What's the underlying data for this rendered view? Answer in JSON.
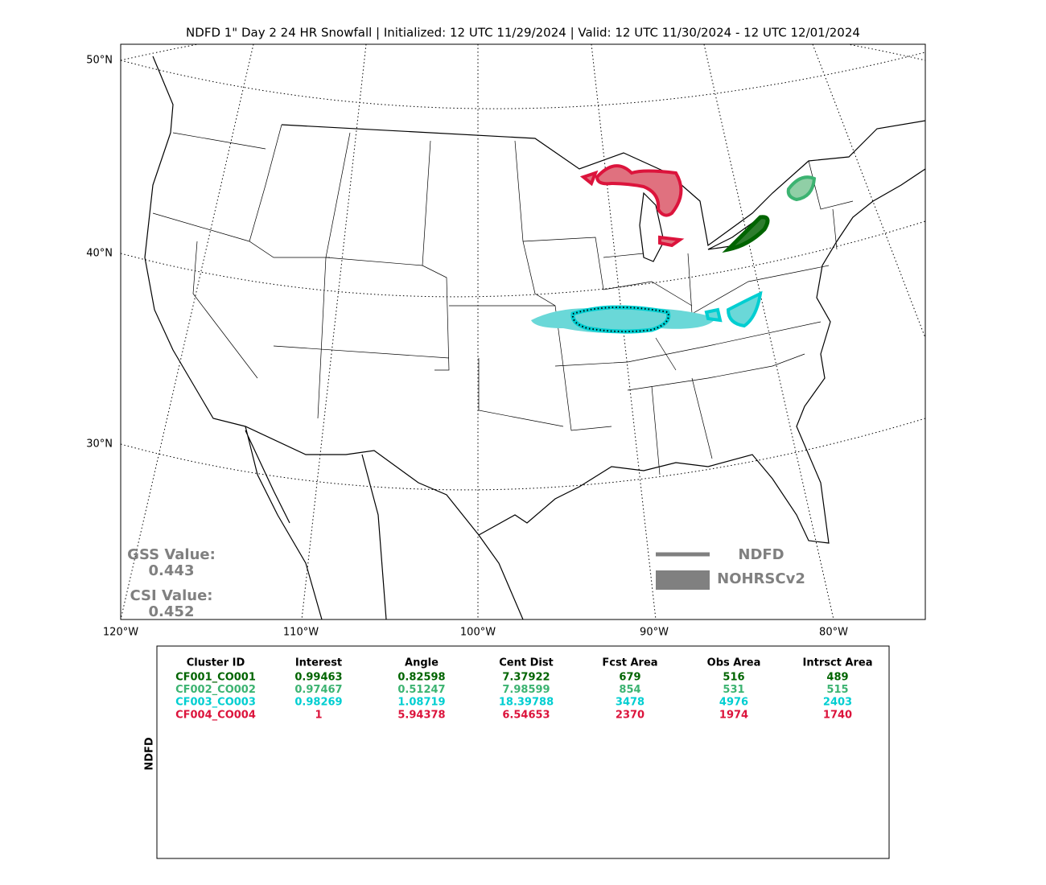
{
  "title": "NDFD 1\" Day 2 24 HR Snowfall | Initialized: 12 UTC 11/29/2024 | Valid: 12 UTC 11/30/2024 - 12 UTC 12/01/2024",
  "map": {
    "lat_labels": [
      "50°N",
      "40°N",
      "30°N"
    ],
    "lon_labels": [
      "120°W",
      "110°W",
      "100°W",
      "90°W",
      "80°W"
    ],
    "legend": [
      "NDFD",
      "NOHRSCv2"
    ],
    "gss_label": "GSS Value:",
    "gss_value": "0.443",
    "csi_label": "CSI Value:",
    "csi_value": "0.452"
  },
  "table": {
    "side_label": "NDFD",
    "header": [
      "Cluster ID",
      "Interest",
      "Angle",
      "Cent Dist",
      "Fcst Area",
      "Obs Area",
      "Intrsct Area"
    ],
    "rows": [
      {
        "color": "#006400",
        "cells": [
          "CF001_CO001",
          "0.99463",
          "0.82598",
          "7.37922",
          "679",
          "516",
          "489"
        ]
      },
      {
        "color": "#3cb371",
        "cells": [
          "CF002_CO002",
          "0.97467",
          "0.51247",
          "7.98599",
          "854",
          "531",
          "515"
        ]
      },
      {
        "color": "#00ced1",
        "cells": [
          "CF003_CO003",
          "0.98269",
          "1.08719",
          "18.39788",
          "3478",
          "4976",
          "2403"
        ]
      },
      {
        "color": "#dc143c",
        "cells": [
          "CF004_CO004",
          "1",
          "5.94378",
          "6.54653",
          "2370",
          "1974",
          "1740"
        ]
      }
    ]
  }
}
